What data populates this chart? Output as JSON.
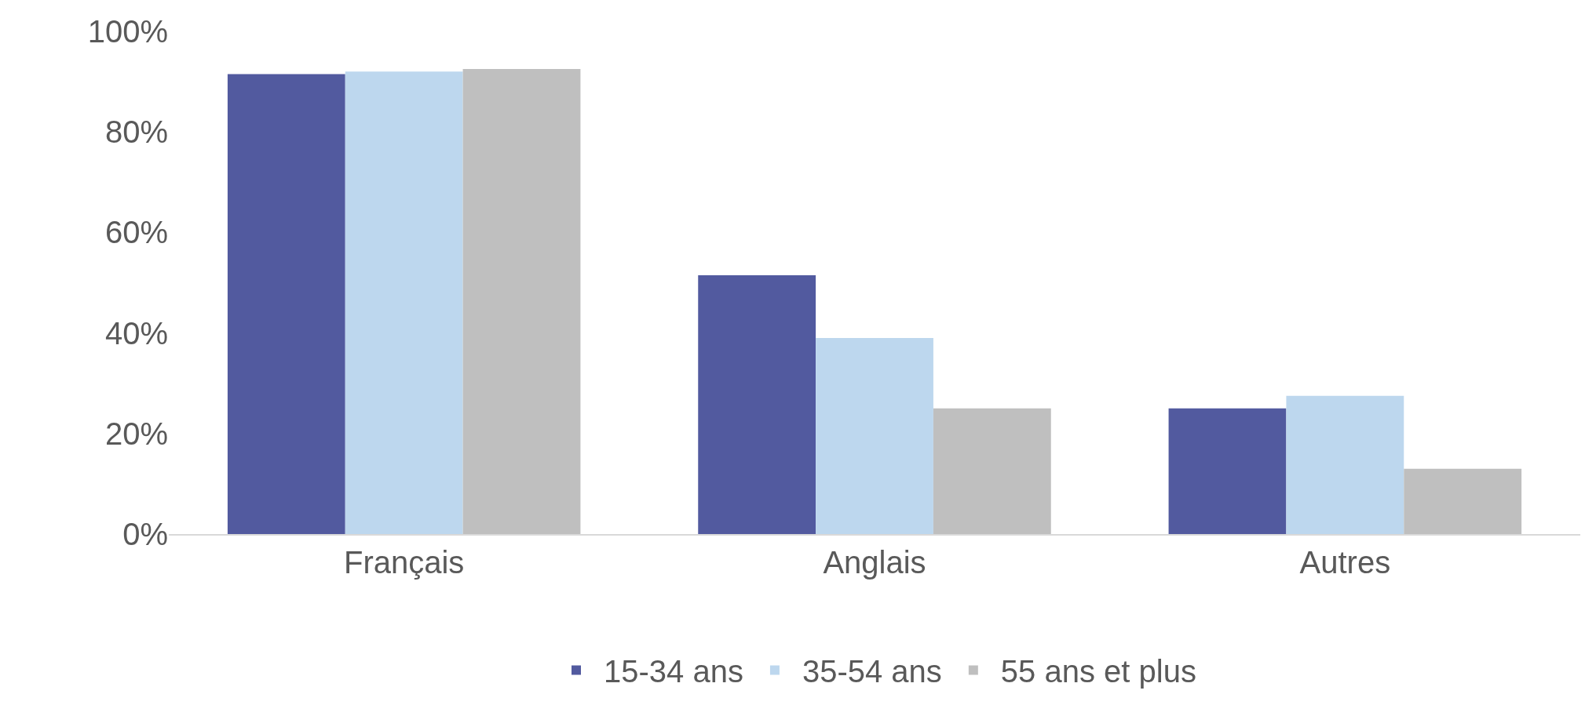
{
  "chart_data": {
    "type": "bar",
    "categories": [
      "Français",
      "Anglais",
      "Autres"
    ],
    "series": [
      {
        "name": "15-34 ans",
        "color": "#525a9f",
        "values": [
          91.5,
          51.5,
          25
        ]
      },
      {
        "name": "35-54 ans",
        "color": "#bdd7ee",
        "values": [
          92,
          39,
          27.5
        ]
      },
      {
        "name": "55 ans et plus",
        "color": "#bfbfbf",
        "values": [
          92.5,
          25,
          13
        ]
      }
    ],
    "ylim": [
      0,
      100
    ],
    "yticks": [
      {
        "value": 0,
        "label": "0%"
      },
      {
        "value": 20,
        "label": "20%"
      },
      {
        "value": 40,
        "label": "40%"
      },
      {
        "value": 60,
        "label": "60%"
      },
      {
        "value": 80,
        "label": "80%"
      },
      {
        "value": 100,
        "label": "100%"
      }
    ],
    "grid": false,
    "legend": "bottom"
  }
}
